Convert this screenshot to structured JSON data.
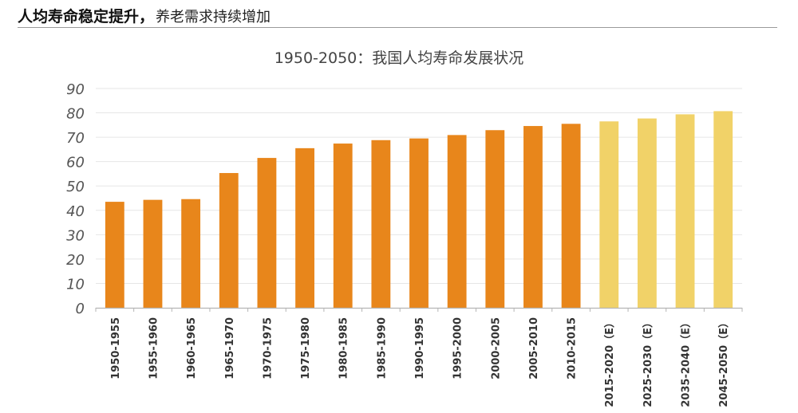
{
  "header": {
    "headline_bold": "人均寿命稳定提升，",
    "headline_rest": "养老需求持续增加"
  },
  "chart_data": {
    "type": "bar",
    "title": "1950-2050：我国人均寿命发展状况",
    "xlabel": "",
    "ylabel": "",
    "ylim": [
      0,
      90
    ],
    "yticks": [
      "0",
      "10",
      "20",
      "30",
      "40",
      "50",
      "60",
      "70",
      "80",
      "90"
    ],
    "grid": true,
    "legend": "none",
    "categories": [
      "1950-1955",
      "1955-1960",
      "1960-1965",
      "1965-1970",
      "1970-1975",
      "1975-1980",
      "1980-1985",
      "1985-1990",
      "1990-1995",
      "1995-2000",
      "2000-2005",
      "2005-2010",
      "2010-2015",
      "2015-2020（E）",
      "2025-2030（E）",
      "2035-2040（E）",
      "2045-2050（E）"
    ],
    "values": [
      43.5,
      44.3,
      44.6,
      55.3,
      61.5,
      65.5,
      67.4,
      68.8,
      69.5,
      70.9,
      72.9,
      74.6,
      75.5,
      76.5,
      77.7,
      79.4,
      80.7
    ],
    "estimated": [
      false,
      false,
      false,
      false,
      false,
      false,
      false,
      false,
      false,
      false,
      false,
      false,
      false,
      true,
      true,
      true,
      true
    ],
    "colors": {
      "actual": "#e8861b",
      "estimate": "#f1d268",
      "grid": "#e6e6e6",
      "axis": "#b5b5b5",
      "tick_label": "#555555",
      "category_label": "#333333",
      "title": "#444444"
    }
  }
}
